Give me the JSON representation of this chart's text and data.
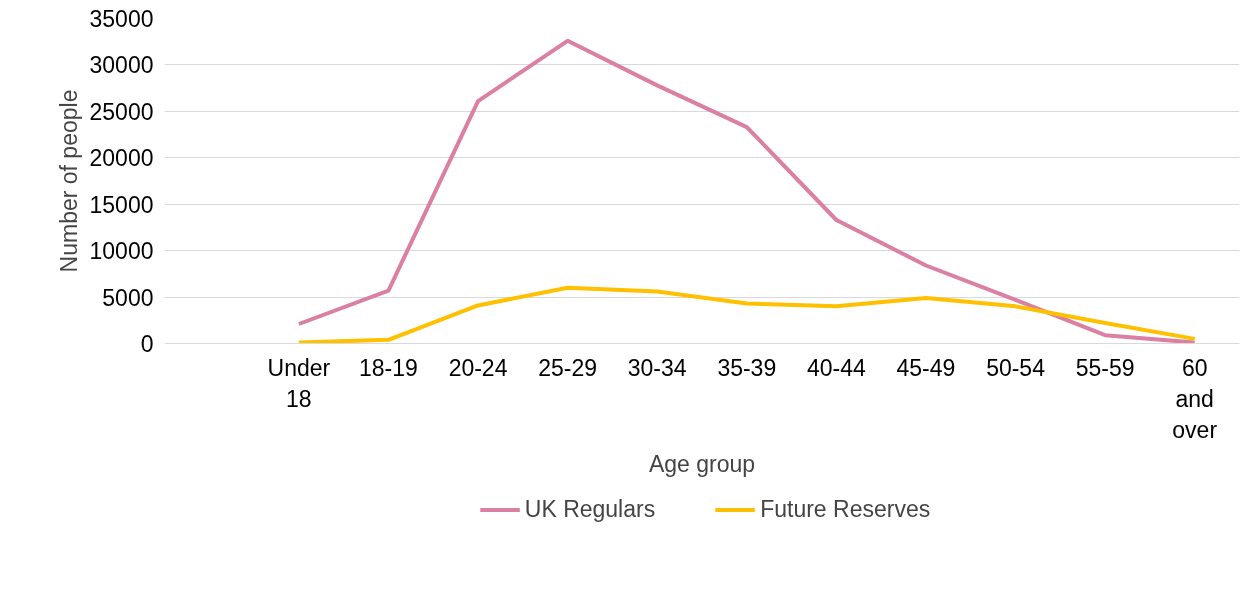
{
  "chart_data": {
    "type": "line",
    "xlabel": "Age group",
    "ylabel": "Number of people",
    "categories": [
      null,
      "Under 18",
      "18-19",
      "20-24",
      "25-29",
      "30-34",
      "35-39",
      "40-44",
      "45-49",
      "50-54",
      "55-59",
      "60 and over"
    ],
    "series": [
      {
        "name": "UK Regulars",
        "color": "#db7fa3",
        "values": [
          null,
          2100,
          5700,
          26100,
          32600,
          27800,
          23300,
          13300,
          8400,
          4700,
          900,
          100
        ]
      },
      {
        "name": "Future Reserves",
        "color": "#ffc000",
        "values": [
          null,
          100,
          400,
          4100,
          6000,
          5600,
          4300,
          4000,
          4900,
          4000,
          2200,
          500
        ]
      }
    ],
    "ylim": [
      0,
      35000
    ],
    "yticks": [
      0,
      5000,
      10000,
      15000,
      20000,
      25000,
      30000,
      35000
    ],
    "grid": "y",
    "legend": "bottom",
    "marker": "none",
    "line_style": "solid"
  }
}
